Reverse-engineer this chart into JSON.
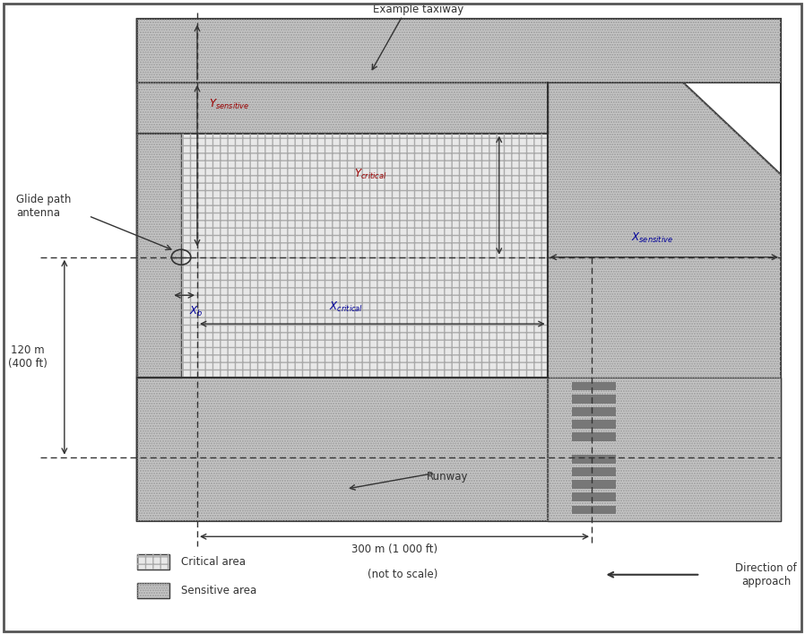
{
  "fig_width": 8.98,
  "fig_height": 7.08,
  "dpi": 100,
  "bg_color": "#ffffff",
  "taxiway_label": "Example taxiway",
  "runway_label": "Runway",
  "antenna_label": "Glide path\nantenna",
  "dim_120m_label": "120 m\n(400 ft)",
  "dim_300m_label": "300 m (1 000 ft)",
  "not_to_scale_label": "(not to scale)",
  "direction_label": "Direction of\napproach",
  "legend_critical": "Critical area",
  "legend_sensitive": "Sensitive area",
  "label_color_x": "#000099",
  "label_color_y": "#990000",
  "dark": "#333333",
  "mid": "#888888",
  "sens_fill": "#c8c8c8",
  "crit_fill": "#e8e8e8",
  "white": "#ffffff",
  "stripe_fill": "#777777"
}
